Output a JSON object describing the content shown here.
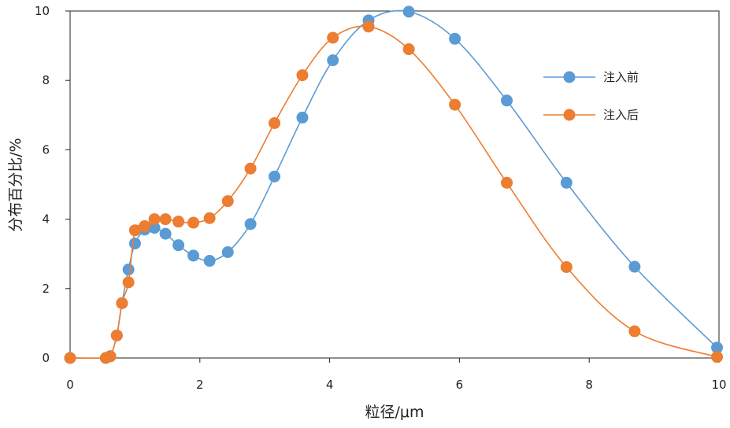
{
  "chart_data": {
    "type": "line",
    "xlabel": "粒径/μm",
    "ylabel": "分布百分比/%",
    "xlim": [
      0,
      10
    ],
    "ylim": [
      0,
      10
    ],
    "x_ticks": [
      0,
      2,
      4,
      6,
      8,
      10
    ],
    "y_ticks": [
      0,
      2,
      4,
      6,
      8,
      10
    ],
    "grid": false,
    "legend": "right",
    "series": [
      {
        "name": "注入前",
        "color": "#5b9bd5",
        "points": [
          [
            0.0,
            0.0
          ],
          [
            0.55,
            0.0
          ],
          [
            0.62,
            0.05
          ],
          [
            0.72,
            0.65
          ],
          [
            0.8,
            1.58
          ],
          [
            0.9,
            2.55
          ],
          [
            1.0,
            3.3
          ],
          [
            1.15,
            3.7
          ],
          [
            1.3,
            3.75
          ],
          [
            1.47,
            3.58
          ],
          [
            1.67,
            3.25
          ],
          [
            1.9,
            2.95
          ],
          [
            2.15,
            2.8
          ],
          [
            2.43,
            3.05
          ],
          [
            2.78,
            3.86
          ],
          [
            3.15,
            5.23
          ],
          [
            3.58,
            6.93
          ],
          [
            4.05,
            8.58
          ],
          [
            4.6,
            9.73
          ],
          [
            5.22,
            9.98
          ],
          [
            5.93,
            9.2
          ],
          [
            6.73,
            7.42
          ],
          [
            7.65,
            5.05
          ],
          [
            8.7,
            2.63
          ],
          [
            9.97,
            0.3
          ]
        ]
      },
      {
        "name": "注入后",
        "color": "#ed7d31",
        "points": [
          [
            0.0,
            0.0
          ],
          [
            0.55,
            0.0
          ],
          [
            0.62,
            0.05
          ],
          [
            0.72,
            0.65
          ],
          [
            0.8,
            1.58
          ],
          [
            0.9,
            2.18
          ],
          [
            1.0,
            3.68
          ],
          [
            1.15,
            3.8
          ],
          [
            1.3,
            4.0
          ],
          [
            1.47,
            4.0
          ],
          [
            1.67,
            3.93
          ],
          [
            1.9,
            3.9
          ],
          [
            2.15,
            4.03
          ],
          [
            2.43,
            4.52
          ],
          [
            2.78,
            5.46
          ],
          [
            3.15,
            6.77
          ],
          [
            3.58,
            8.15
          ],
          [
            4.05,
            9.23
          ],
          [
            4.6,
            9.55
          ],
          [
            5.22,
            8.9
          ],
          [
            5.93,
            7.3
          ],
          [
            6.73,
            5.05
          ],
          [
            7.65,
            2.62
          ],
          [
            8.7,
            0.77
          ],
          [
            9.97,
            0.03
          ]
        ]
      }
    ]
  }
}
